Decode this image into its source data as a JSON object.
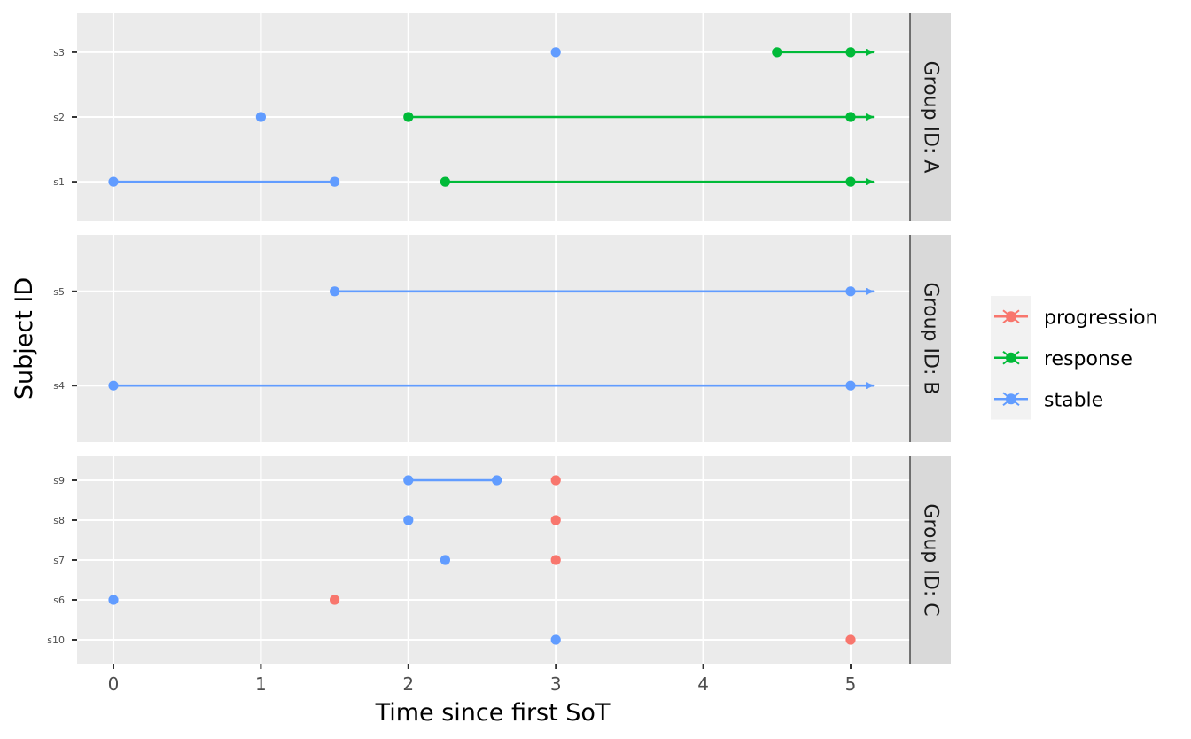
{
  "chart_data": {
    "type": "scatter",
    "xlabel": "Time since first SoT",
    "ylabel": "Subject ID",
    "xlim": [
      -0.25,
      5.67
    ],
    "x_ticks": [
      0,
      1,
      2,
      3,
      4,
      5
    ],
    "grid": true,
    "legend_position": "right",
    "colors": {
      "progression": "#F8766D",
      "response": "#00BA38",
      "stable": "#619CFF"
    },
    "legend": [
      {
        "key": "progression",
        "label": "progression"
      },
      {
        "key": "response",
        "label": "response"
      },
      {
        "key": "stable",
        "label": "stable"
      }
    ],
    "facets": [
      {
        "label": "Group ID: A",
        "subjects": [
          "s1",
          "s2",
          "s3"
        ],
        "points": [
          {
            "subject": "s1",
            "x": 0,
            "status": "stable"
          },
          {
            "subject": "s1",
            "x": 1.5,
            "status": "stable"
          },
          {
            "subject": "s1",
            "x": 2.25,
            "status": "response"
          },
          {
            "subject": "s1",
            "x": 5,
            "status": "response"
          },
          {
            "subject": "s2",
            "x": 1,
            "status": "stable"
          },
          {
            "subject": "s2",
            "x": 2,
            "status": "response"
          },
          {
            "subject": "s2",
            "x": 5,
            "status": "response"
          },
          {
            "subject": "s3",
            "x": 3,
            "status": "stable"
          },
          {
            "subject": "s3",
            "x": 4.5,
            "status": "response"
          },
          {
            "subject": "s3",
            "x": 5,
            "status": "response"
          }
        ],
        "segments": [
          {
            "subject": "s1",
            "x_start": 0,
            "x_end": 1.5,
            "status": "stable",
            "arrow": false
          },
          {
            "subject": "s1",
            "x_start": 2.25,
            "x_end": 5,
            "status": "response",
            "arrow": true
          },
          {
            "subject": "s2",
            "x_start": 2,
            "x_end": 5,
            "status": "response",
            "arrow": true
          },
          {
            "subject": "s3",
            "x_start": 4.5,
            "x_end": 5,
            "status": "response",
            "arrow": true
          }
        ]
      },
      {
        "label": "Group ID: B",
        "subjects": [
          "s4",
          "s5"
        ],
        "points": [
          {
            "subject": "s4",
            "x": 0,
            "status": "stable"
          },
          {
            "subject": "s4",
            "x": 5,
            "status": "stable"
          },
          {
            "subject": "s5",
            "x": 1.5,
            "status": "stable"
          },
          {
            "subject": "s5",
            "x": 5,
            "status": "stable"
          }
        ],
        "segments": [
          {
            "subject": "s4",
            "x_start": 0,
            "x_end": 5,
            "status": "stable",
            "arrow": true
          },
          {
            "subject": "s5",
            "x_start": 1.5,
            "x_end": 5,
            "status": "stable",
            "arrow": true
          }
        ]
      },
      {
        "label": "Group ID: C",
        "subjects": [
          "s10",
          "s6",
          "s7",
          "s8",
          "s9"
        ],
        "points": [
          {
            "subject": "s10",
            "x": 3,
            "status": "stable"
          },
          {
            "subject": "s10",
            "x": 5,
            "status": "progression"
          },
          {
            "subject": "s6",
            "x": 0,
            "status": "stable"
          },
          {
            "subject": "s6",
            "x": 1.5,
            "status": "progression"
          },
          {
            "subject": "s7",
            "x": 2.25,
            "status": "stable"
          },
          {
            "subject": "s7",
            "x": 3,
            "status": "progression"
          },
          {
            "subject": "s8",
            "x": 2,
            "status": "stable"
          },
          {
            "subject": "s8",
            "x": 3,
            "status": "progression"
          },
          {
            "subject": "s9",
            "x": 2,
            "status": "stable"
          },
          {
            "subject": "s9",
            "x": 2.6,
            "status": "stable"
          },
          {
            "subject": "s9",
            "x": 3,
            "status": "progression"
          }
        ],
        "segments": [
          {
            "subject": "s9",
            "x_start": 2,
            "x_end": 2.6,
            "status": "stable",
            "arrow": false
          }
        ]
      }
    ]
  }
}
